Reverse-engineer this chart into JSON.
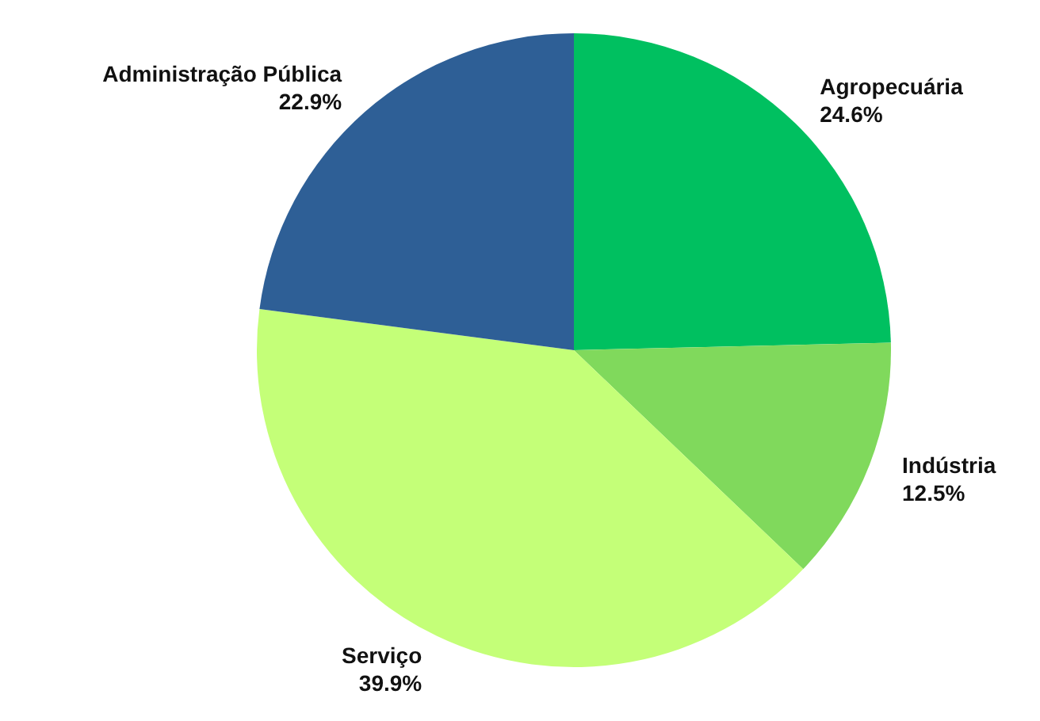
{
  "chart_data": {
    "type": "pie",
    "categories": [
      "Agropecuária",
      "Indústria",
      "Serviço",
      "Administração Pública"
    ],
    "values": [
      24.6,
      12.5,
      39.9,
      22.9
    ],
    "colors": [
      "#00c060",
      "#80d95c",
      "#c4ff78",
      "#2e5f96"
    ],
    "value_labels": [
      "24.6%",
      "12.5%",
      "39.9%",
      "22.9%"
    ],
    "legend": false
  }
}
